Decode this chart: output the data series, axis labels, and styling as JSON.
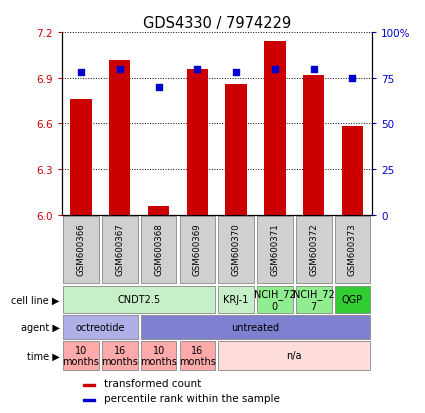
{
  "title": "GDS4330 / 7974229",
  "samples": [
    "GSM600366",
    "GSM600367",
    "GSM600368",
    "GSM600369",
    "GSM600370",
    "GSM600371",
    "GSM600372",
    "GSM600373"
  ],
  "bar_values": [
    6.76,
    7.02,
    6.06,
    6.96,
    6.86,
    7.14,
    6.92,
    6.58
  ],
  "percentile_values": [
    78,
    80,
    70,
    80,
    78,
    80,
    80,
    75
  ],
  "ylim": [
    6.0,
    7.2
  ],
  "ylim_right": [
    0,
    100
  ],
  "yticks_left": [
    6.0,
    6.3,
    6.6,
    6.9,
    7.2
  ],
  "yticks_right": [
    0,
    25,
    50,
    75,
    100
  ],
  "ytick_labels_right": [
    "0",
    "25",
    "50",
    "75",
    "100%"
  ],
  "bar_color": "#cc0000",
  "dot_color": "#0000cc",
  "grid_color": "#000000",
  "cell_line_row": {
    "label": "cell line",
    "groups": [
      {
        "text": "CNDT2.5",
        "span": [
          0,
          3
        ],
        "color": "#c8f0c8"
      },
      {
        "text": "KRJ-1",
        "span": [
          4,
          4
        ],
        "color": "#c8f0c8"
      },
      {
        "text": "NCIH_72\n0",
        "span": [
          5,
          5
        ],
        "color": "#90ee90"
      },
      {
        "text": "NCIH_72\n7",
        "span": [
          6,
          6
        ],
        "color": "#90ee90"
      },
      {
        "text": "QGP",
        "span": [
          7,
          7
        ],
        "color": "#32cd32"
      }
    ]
  },
  "agent_row": {
    "label": "agent",
    "groups": [
      {
        "text": "octreotide",
        "span": [
          0,
          1
        ],
        "color": "#b0b0e8"
      },
      {
        "text": "untreated",
        "span": [
          2,
          7
        ],
        "color": "#8080d0"
      }
    ]
  },
  "time_row": {
    "label": "time",
    "groups": [
      {
        "text": "10\nmonths",
        "span": [
          0,
          0
        ],
        "color": "#ffaaaa"
      },
      {
        "text": "16\nmonths",
        "span": [
          1,
          1
        ],
        "color": "#ffaaaa"
      },
      {
        "text": "10\nmonths",
        "span": [
          2,
          2
        ],
        "color": "#ffaaaa"
      },
      {
        "text": "16\nmonths",
        "span": [
          3,
          3
        ],
        "color": "#ffaaaa"
      },
      {
        "text": "n/a",
        "span": [
          4,
          7
        ],
        "color": "#ffdddd"
      }
    ]
  },
  "legend_bar_label": "transformed count",
  "legend_dot_label": "percentile rank within the sample",
  "bar_width": 0.55,
  "sample_box_color": "#d0d0d0",
  "sample_box_edge": "#888888",
  "background_color": "#ffffff"
}
